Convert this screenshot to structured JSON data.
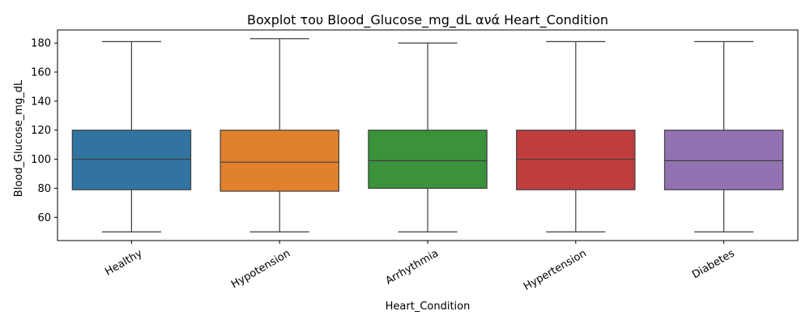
{
  "chart_data": {
    "type": "box",
    "title": "Boxplot του Blood_Glucose_mg_dL ανά Heart_Condition",
    "xlabel": "Heart_Condition",
    "ylabel": "Blood_Glucose_mg_dL",
    "ylim": [
      44,
      189
    ],
    "yticks": [
      60,
      80,
      100,
      120,
      140,
      160,
      180
    ],
    "categories": [
      "Healthy",
      "Hypotension",
      "Arrhythmia",
      "Hypertension",
      "Diabetes"
    ],
    "boxes": [
      {
        "category": "Healthy",
        "whisker_low": 50,
        "q1": 79,
        "median": 100,
        "q3": 120,
        "whisker_high": 181,
        "color": "#3274a1"
      },
      {
        "category": "Hypotension",
        "whisker_low": 50,
        "q1": 78,
        "median": 98,
        "q3": 120,
        "whisker_high": 183,
        "color": "#e1812c"
      },
      {
        "category": "Arrhythmia",
        "whisker_low": 50,
        "q1": 80,
        "median": 99,
        "q3": 120,
        "whisker_high": 180,
        "color": "#3a923a"
      },
      {
        "category": "Hypertension",
        "whisker_low": 50,
        "q1": 79,
        "median": 100,
        "q3": 120,
        "whisker_high": 181,
        "color": "#c03d3e"
      },
      {
        "category": "Diabetes",
        "whisker_low": 50,
        "q1": 79,
        "median": 99,
        "q3": 120,
        "whisker_high": 181,
        "color": "#9372b2"
      }
    ],
    "grid": false,
    "legend": "none"
  }
}
